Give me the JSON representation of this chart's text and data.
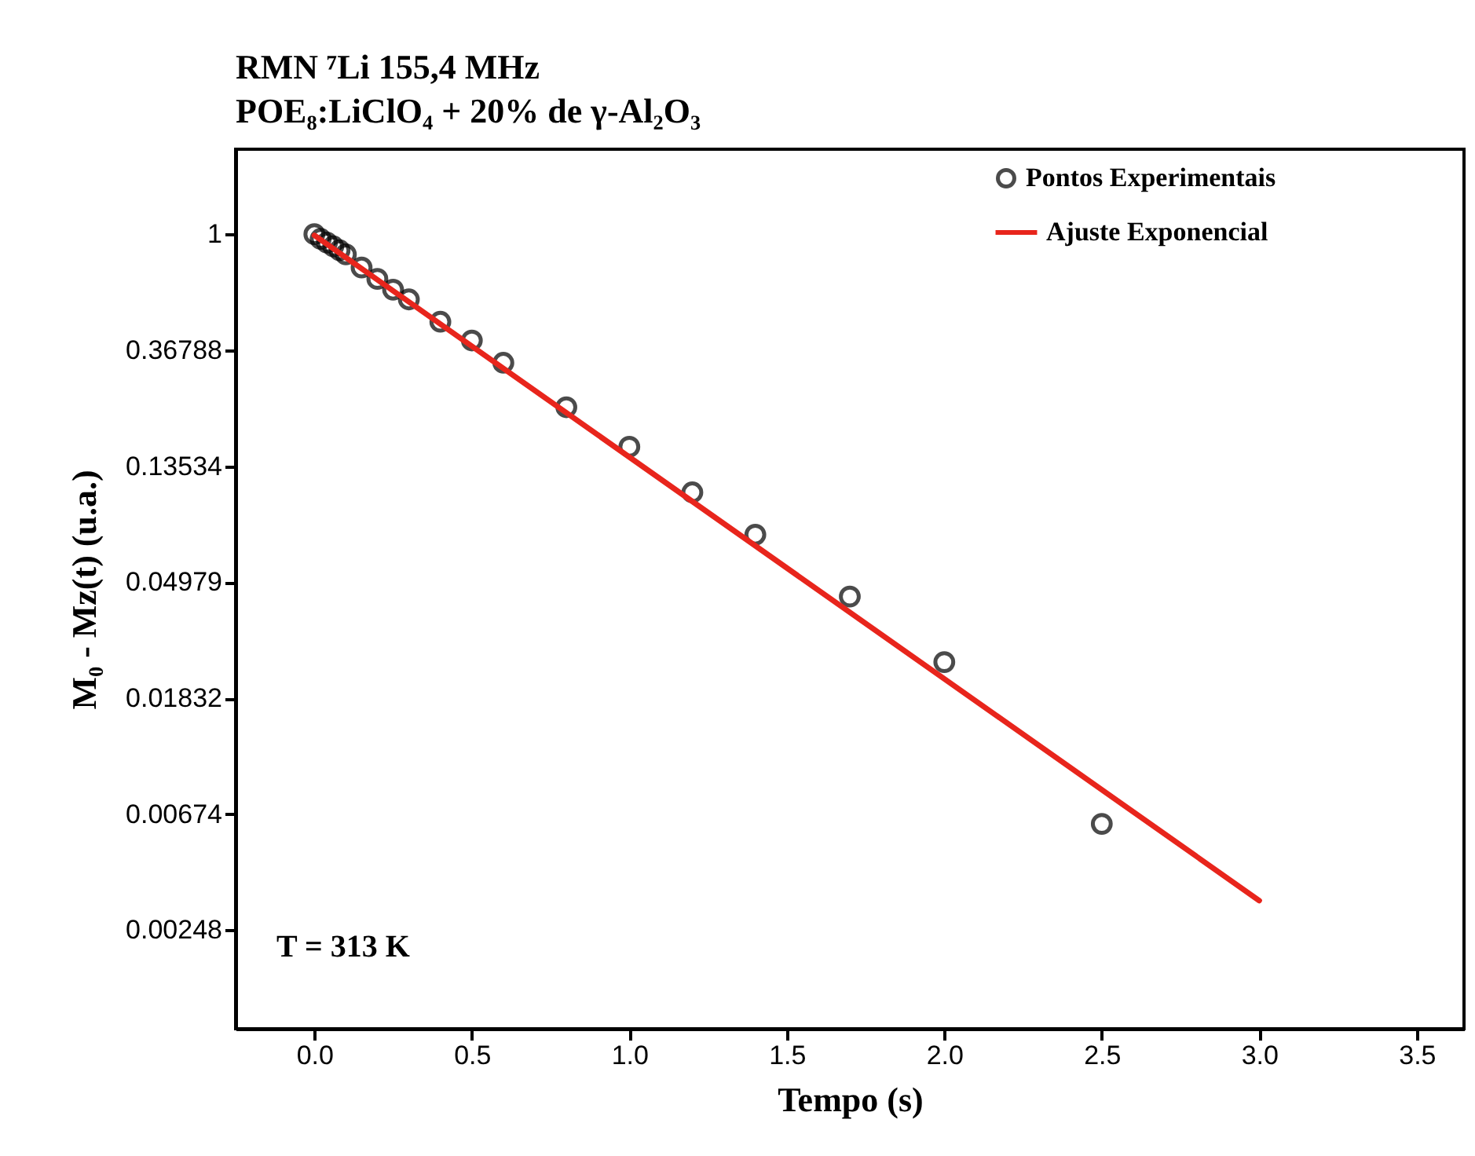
{
  "chart_data": {
    "type": "scatter",
    "title": "RMN ⁷Li 155,4 MHz",
    "subtitle": "POE₈:LiClO₄ + 20% de γ-Al₂O₃",
    "xlabel": "Tempo  (s)",
    "ylabel": "M₀ - Mz(t)    (u.a.)",
    "annotations": [
      "T = 313 K"
    ],
    "log": "y",
    "xlim": [
      -0.25,
      3.65
    ],
    "xticks": [
      {
        "value": 0,
        "label": "0.0"
      },
      0.5,
      {
        "value": 1,
        "label": "1.0"
      },
      1.5,
      {
        "value": 2,
        "label": "2.0"
      },
      2.5,
      {
        "value": 3,
        "label": "3.0"
      },
      3.5
    ],
    "ylim": [
      0.00106,
      2.08
    ],
    "yticks": [
      0.00248,
      0.00674,
      0.01832,
      0.04979,
      0.13534,
      0.36788,
      1
    ],
    "legend": "top right",
    "grid": false,
    "series": [
      {
        "name": "Pontos Experimentais",
        "marker": "circle",
        "color": "#000000",
        "x": [
          0,
          0.02,
          0.04,
          0.06,
          0.08,
          0.1,
          0.15,
          0.2,
          0.25,
          0.3,
          0.4,
          0.5,
          0.6,
          0.8,
          1.0,
          1.2,
          1.4,
          1.7,
          2.0,
          2.5
        ],
        "values": [
          1,
          0.96,
          0.93,
          0.9,
          0.87,
          0.84,
          0.75,
          0.68,
          0.62,
          0.57,
          0.47,
          0.4,
          0.33,
          0.225,
          0.16,
          0.108,
          0.075,
          0.044,
          0.025,
          0.0062
        ]
      },
      {
        "name": "Ajuste Exponencial",
        "type": "line",
        "line_style": "solid",
        "color": "#e8251c",
        "x": [
          0,
          3.0
        ],
        "values": [
          0.99,
          0.0032
        ]
      }
    ]
  }
}
